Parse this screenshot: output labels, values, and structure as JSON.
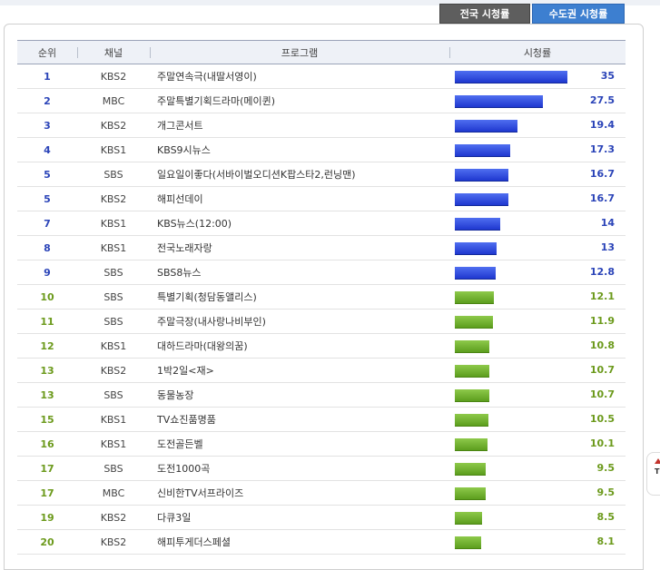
{
  "tabs": [
    {
      "label": "전국 시청률",
      "active": false
    },
    {
      "label": "수도권 시청률",
      "active": true
    }
  ],
  "table": {
    "headers": [
      "순위",
      "채널",
      "프로그램",
      "시청률"
    ]
  },
  "colors": {
    "top_bar": "#2a45d6",
    "other_bar": "#6fae2c"
  },
  "chart_data": {
    "type": "bar",
    "orientation": "horizontal",
    "xlim": [
      0,
      35
    ],
    "rows": [
      {
        "rank": "1",
        "channel": "KBS2",
        "program": "주말연속극(내딸서영이)",
        "rating": 35,
        "color": "blue"
      },
      {
        "rank": "2",
        "channel": "MBC",
        "program": "주말특별기획드라마(메이퀸)",
        "rating": 27.5,
        "color": "blue"
      },
      {
        "rank": "3",
        "channel": "KBS2",
        "program": "개그콘서트",
        "rating": 19.4,
        "color": "blue"
      },
      {
        "rank": "4",
        "channel": "KBS1",
        "program": "KBS9시뉴스",
        "rating": 17.3,
        "color": "blue"
      },
      {
        "rank": "5",
        "channel": "SBS",
        "program": "일요일이좋다(서바이벌오디션K팝스타2,런닝맨)",
        "rating": 16.7,
        "color": "blue"
      },
      {
        "rank": "5",
        "channel": "KBS2",
        "program": "해피선데이",
        "rating": 16.7,
        "color": "blue"
      },
      {
        "rank": "7",
        "channel": "KBS1",
        "program": "KBS뉴스(12:00)",
        "rating": 14,
        "color": "blue"
      },
      {
        "rank": "8",
        "channel": "KBS1",
        "program": "전국노래자랑",
        "rating": 13,
        "color": "blue"
      },
      {
        "rank": "9",
        "channel": "SBS",
        "program": "SBS8뉴스",
        "rating": 12.8,
        "color": "blue"
      },
      {
        "rank": "10",
        "channel": "SBS",
        "program": "특별기획(청담동앨리스)",
        "rating": 12.1,
        "color": "green"
      },
      {
        "rank": "11",
        "channel": "SBS",
        "program": "주말극장(내사랑나비부인)",
        "rating": 11.9,
        "color": "green"
      },
      {
        "rank": "12",
        "channel": "KBS1",
        "program": "대하드라마(대왕의꿈)",
        "rating": 10.8,
        "color": "green"
      },
      {
        "rank": "13",
        "channel": "KBS2",
        "program": "1박2일<재>",
        "rating": 10.7,
        "color": "green"
      },
      {
        "rank": "13",
        "channel": "SBS",
        "program": "동물농장",
        "rating": 10.7,
        "color": "green"
      },
      {
        "rank": "15",
        "channel": "KBS1",
        "program": "TV쇼진품명품",
        "rating": 10.5,
        "color": "green"
      },
      {
        "rank": "16",
        "channel": "KBS1",
        "program": "도전골든벨",
        "rating": 10.1,
        "color": "green"
      },
      {
        "rank": "17",
        "channel": "SBS",
        "program": "도전1000곡",
        "rating": 9.5,
        "color": "green"
      },
      {
        "rank": "17",
        "channel": "MBC",
        "program": "신비한TV서프라이즈",
        "rating": 9.5,
        "color": "green"
      },
      {
        "rank": "19",
        "channel": "KBS2",
        "program": "다큐3일",
        "rating": 8.5,
        "color": "green"
      },
      {
        "rank": "20",
        "channel": "KBS2",
        "program": "해피투게더스페셜",
        "rating": 8.1,
        "color": "green"
      }
    ]
  },
  "side_button": {
    "label": "TO"
  }
}
